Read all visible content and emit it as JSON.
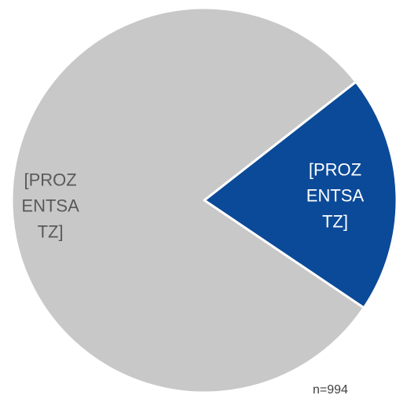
{
  "chart_data": {
    "type": "pie",
    "values": [
      20,
      80
    ],
    "value_labels": [
      "[PROZENTSATZ]",
      "[PROZENTSATZ]"
    ],
    "colors": [
      "#0b4a98",
      "#c8c8c8"
    ],
    "label_colors": [
      "#ffffff",
      "#595959"
    ],
    "annotation": "n=994"
  }
}
